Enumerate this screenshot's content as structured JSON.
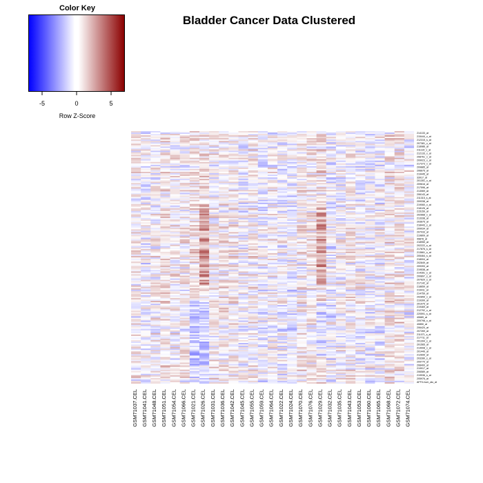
{
  "chart_data": {
    "type": "heatmap",
    "title": "Bladder Cancer Data Clustered",
    "color_key": {
      "title": "Color Key",
      "xlabel": "Row Z-Score",
      "ticks": [
        -5,
        0,
        5
      ],
      "range": [
        -7,
        7
      ],
      "low_color": "#0000ff",
      "mid_color": "#ffffff",
      "high_color": "#8b0000"
    },
    "columns": [
      "GSM71037.CEL",
      "GSM71041.CEL",
      "GSM71048.CEL",
      "GSM71051.CEL",
      "GSM71054.CEL",
      "GSM71066.CEL",
      "GSM71021.CEL",
      "GSM71026.CEL",
      "GSM71031.CEL",
      "GSM71036.CEL",
      "GSM71042.CEL",
      "GSM71045.CEL",
      "GSM71055.CEL",
      "GSM71059.CEL",
      "GSM71064.CEL",
      "GSM71022.CEL",
      "GSM71024.CEL",
      "GSM71070.CEL",
      "GSM71076.CEL",
      "GSM71029.CEL",
      "GSM71032.CEL",
      "GSM71035.CEL",
      "GSM71043.CEL",
      "GSM71053.CEL",
      "GSM71060.CEL",
      "GSM71065.CEL",
      "GSM71068.CEL",
      "GSM71072.CEL",
      "GSM71074.CEL"
    ],
    "row_labels": [
      "214133_at",
      "215444_x_at",
      "212315_s_at",
      "207381_x_at",
      "218986_at",
      "211130_x_at",
      "212133_x_at",
      "208761_x_at",
      "209023_x_at",
      "217373_x_at",
      "209885_at",
      "206675_at",
      "219445_at",
      "33917_at",
      "201351_x_at",
      "209616_at",
      "217596_at",
      "213069_at",
      "206143_at",
      "211315_s_at",
      "209338_at",
      "219060_x_at",
      "218126_at",
      "215159_at",
      "202668_x_at",
      "213338_at",
      "203675_at",
      "218443_s_at",
      "209034_at",
      "207033_at",
      "219809_at",
      "49878_at",
      "218950_at",
      "202222_s_at",
      "217876_s_at",
      "213661_s_at",
      "205464_s_at",
      "218004_at",
      "202849_at",
      "209393_at",
      "219538_at",
      "214281_s_at",
      "200897_s_at",
      "207620_s_at",
      "217142_at",
      "218659_at",
      "219411_at",
      "214759_at",
      "202859_x_at",
      "219399_at",
      "201975_at",
      "219469_at",
      "212792_x_at",
      "220591_s_at",
      "40689_at",
      "209798_x_at",
      "40850_at",
      "206420_at",
      "207269_at",
      "211071_s_at",
      "217711_at",
      "201394_s_at",
      "201565_at",
      "214008_x_at",
      "201449_at",
      "212699_at",
      "203280_s_at",
      "209770_at",
      "208400_at",
      "219917_at",
      "206589_at",
      "219936_s_at",
      "205976_at",
      "AFFX-hum_alu_at"
    ],
    "n_rows": 74,
    "value_scale": "row z-score"
  }
}
